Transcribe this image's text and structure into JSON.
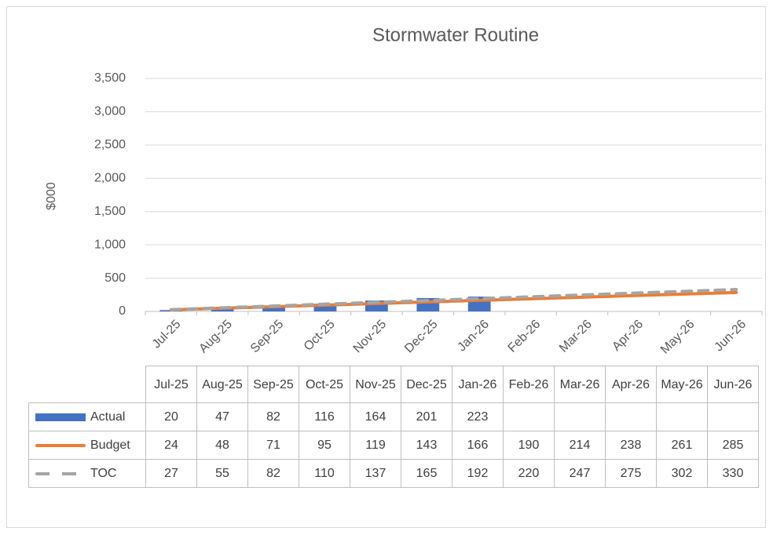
{
  "chart_data": {
    "type": "bar-line",
    "title": "Stormwater Routine",
    "y_label": "$000",
    "categories": [
      "Jul-25",
      "Aug-25",
      "Sep-25",
      "Oct-25",
      "Nov-25",
      "Dec-25",
      "Jan-26",
      "Feb-26",
      "Mar-26",
      "Apr-26",
      "May-26",
      "Jun-26"
    ],
    "series": [
      {
        "name": "Actual",
        "type": "bar",
        "color": "#4472c4",
        "values": [
          20,
          47,
          82,
          116,
          164,
          201,
          223,
          null,
          null,
          null,
          null,
          null
        ]
      },
      {
        "name": "Budget",
        "type": "line",
        "color": "#ed7d31",
        "values": [
          24,
          48,
          71,
          95,
          119,
          143,
          166,
          190,
          214,
          238,
          261,
          285
        ]
      },
      {
        "name": "TOC",
        "type": "line",
        "dashed": true,
        "color": "#a5a5a5",
        "values": [
          27,
          55,
          82,
          110,
          137,
          165,
          192,
          220,
          247,
          275,
          302,
          330
        ]
      }
    ],
    "ylim": [
      0,
      3500
    ],
    "yticks": [
      0,
      500,
      {
        "value": 1000,
        "label": "1,000"
      },
      {
        "value": 1500,
        "label": "1,500"
      },
      {
        "value": 2000,
        "label": "2,000"
      },
      {
        "value": 2500,
        "label": "2,500"
      },
      {
        "value": 3000,
        "label": "3,000"
      },
      {
        "value": 3500,
        "label": "3,500"
      }
    ],
    "grid": true
  }
}
